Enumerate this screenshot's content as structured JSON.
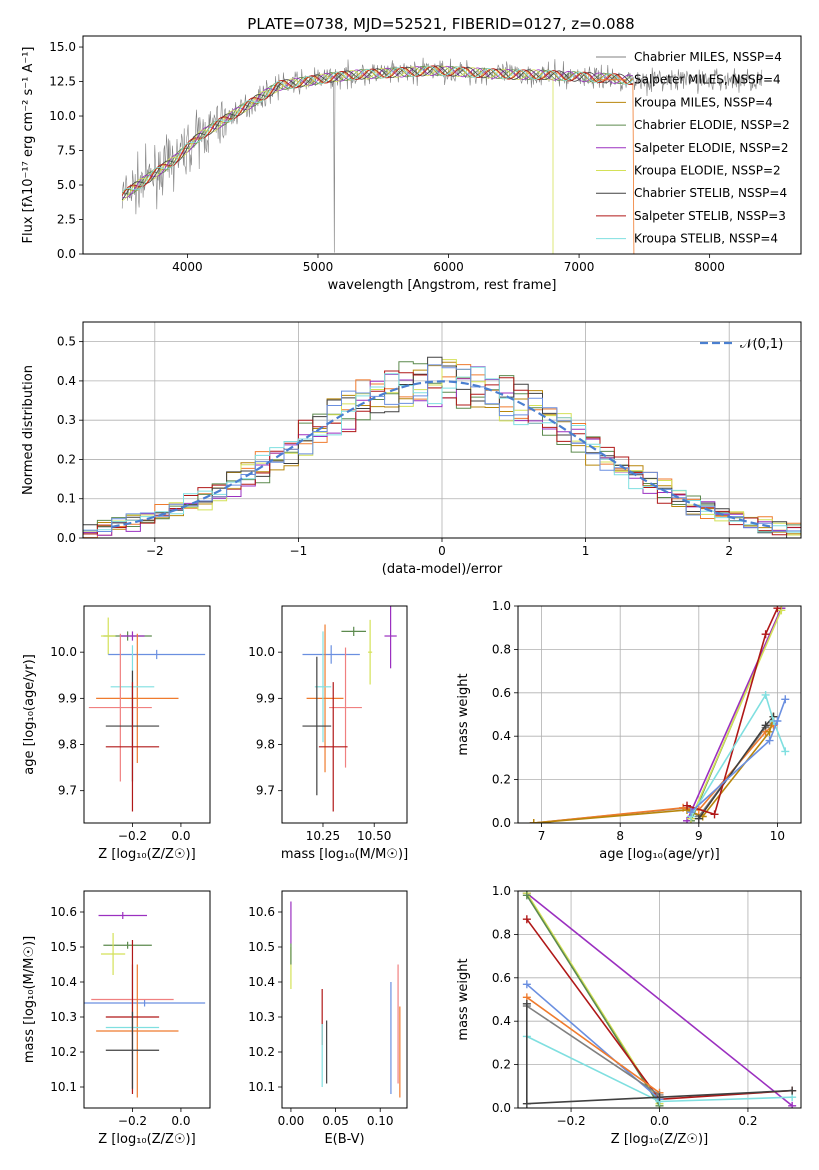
{
  "figure_title": "PLATE=0738, MJD=52521, FIBERID=0127, z=0.088",
  "series_colors": [
    "#808080",
    "#ef7b2e",
    "#b8860b",
    "#5c8a4e",
    "#9b30c0",
    "#d4e157",
    "#404040",
    "#b01818",
    "#7fdfe0"
  ],
  "chart_data": [
    {
      "type": "line",
      "panel": "spectrum",
      "title": "PLATE=0738, MJD=52521, FIBERID=0127, z=0.088",
      "xlabel": "wavelength [Angstrom, rest frame]",
      "ylabel": "Flux [fλ10⁻¹⁷ erg cm⁻² s⁻¹ A⁻¹]",
      "xlim": [
        3200,
        8700
      ],
      "ylim": [
        0,
        15.8
      ],
      "xticks": [
        4000,
        5000,
        6000,
        7000,
        8000
      ],
      "yticks": [
        0.0,
        2.5,
        5.0,
        7.5,
        10.0,
        12.5,
        15.0
      ],
      "legend_position": "upper-right",
      "series": [
        {
          "name": "Chabrier MILES, N_SSP=4",
          "color": "#808080"
        },
        {
          "name": "Salpeter MILES, N_SSP=4",
          "color": "#ef7b2e"
        },
        {
          "name": "Kroupa MILES, N_SSP=4",
          "color": "#b8860b"
        },
        {
          "name": "Chabrier ELODIE, N_SSP=2",
          "color": "#5c8a4e"
        },
        {
          "name": "Salpeter ELODIE, N_SSP=2",
          "color": "#9b30c0"
        },
        {
          "name": "Kroupa ELODIE, N_SSP=2",
          "color": "#d4e157"
        },
        {
          "name": "Chabrier STELIB, N_SSP=4",
          "color": "#404040"
        },
        {
          "name": "Salpeter STELIB, N_SSP=3",
          "color": "#b01818"
        },
        {
          "name": "Kroupa STELIB, N_SSP=4",
          "color": "#7fdfe0"
        }
      ],
      "continuum": {
        "x": [
          3500,
          3700,
          3900,
          4100,
          4300,
          4500,
          4700,
          4900,
          5100,
          5300,
          5500,
          5700,
          5900,
          6100,
          6300,
          6500,
          6700,
          6900,
          7100,
          7300,
          7420
        ],
        "y": [
          4.2,
          5.5,
          6.8,
          8.6,
          9.8,
          11.0,
          12.2,
          12.5,
          12.8,
          13.0,
          13.1,
          13.2,
          13.3,
          13.2,
          13.1,
          13.0,
          13.0,
          12.9,
          12.8,
          12.7,
          12.6
        ]
      },
      "data_extent": {
        "data_max": 8400,
        "model_max": 7420
      }
    },
    {
      "type": "line",
      "panel": "residuals",
      "xlabel": "(data-model)/error",
      "ylabel": "Normed distribution",
      "xlim": [
        -2.5,
        2.5
      ],
      "ylim": [
        0,
        0.55
      ],
      "xticks": [
        -2,
        -1,
        0,
        1,
        2
      ],
      "yticks": [
        0.0,
        0.1,
        0.2,
        0.3,
        0.4,
        0.5
      ],
      "grid": true,
      "legend_position": "upper-right",
      "reference": {
        "name": "𝒩(0,1)",
        "color": "#4a7fd0",
        "mean": 0,
        "sigma": 1
      }
    },
    {
      "type": "scatter",
      "panel": "age-vs-Z",
      "xlabel": "Z [log₁₀(Z/Z☉)]",
      "ylabel": "age  [log₁₀(age/yr)]",
      "xlim": [
        -0.4,
        0.12
      ],
      "ylim": [
        9.63,
        10.1
      ],
      "xticks": [
        -0.2,
        0.0
      ],
      "yticks": [
        9.7,
        9.8,
        9.9,
        10.0
      ],
      "points": [
        {
          "x": -0.22,
          "xerr": 0.1,
          "y": 10.035,
          "yerr": 0.01,
          "color": "#5c8a4e"
        },
        {
          "x": -0.2,
          "xerr": 0.05,
          "y": 10.035,
          "yerr": 0.01,
          "color": "#9b30c0"
        },
        {
          "x": -0.3,
          "xerr": 0.03,
          "y": 10.035,
          "yerr": 0.04,
          "color": "#d4e157"
        },
        {
          "x": -0.1,
          "xerr": 0.2,
          "y": 9.995,
          "yerr": 0.01,
          "color": "#6a8fe0"
        },
        {
          "x": -0.18,
          "xerr": 0.17,
          "y": 9.9,
          "yerr": 0.14,
          "color": "#ef7b2e"
        },
        {
          "x": -0.2,
          "xerr": 0.09,
          "y": 9.925,
          "yerr": 0.09,
          "color": "#7fdfe0"
        },
        {
          "x": -0.25,
          "xerr": 0.13,
          "y": 9.88,
          "yerr": 0.16,
          "color": "#f08080"
        },
        {
          "x": -0.2,
          "xerr": 0.11,
          "y": 9.84,
          "yerr": 0.12,
          "color": "#404040"
        },
        {
          "x": -0.2,
          "xerr": 0.11,
          "y": 9.795,
          "yerr": 0.14,
          "color": "#b01818"
        }
      ]
    },
    {
      "type": "scatter",
      "panel": "age-vs-mass",
      "xlabel": "mass [log₁₀(M/M☉)]",
      "ylabel": "",
      "xlim": [
        10.05,
        10.66
      ],
      "ylim": [
        9.63,
        10.1
      ],
      "xticks": [
        10.25,
        10.5
      ],
      "yticks": [
        9.7,
        9.8,
        9.9,
        10.0
      ],
      "points": [
        {
          "x": 10.4,
          "xerr": 0.06,
          "y": 10.045,
          "yerr": 0.01,
          "color": "#5c8a4e"
        },
        {
          "x": 10.58,
          "xerr": 0.03,
          "y": 10.035,
          "yerr": 0.07,
          "color": "#9b30c0"
        },
        {
          "x": 10.48,
          "xerr": 0.01,
          "y": 10.0,
          "yerr": 0.07,
          "color": "#d4e157"
        },
        {
          "x": 10.29,
          "xerr": 0.14,
          "y": 9.995,
          "yerr": 0.02,
          "color": "#6a8fe0"
        },
        {
          "x": 10.26,
          "xerr": 0.09,
          "y": 9.9,
          "yerr": 0.16,
          "color": "#ef7b2e"
        },
        {
          "x": 10.25,
          "xerr": 0.04,
          "y": 9.925,
          "yerr": 0.12,
          "color": "#7fdfe0"
        },
        {
          "x": 10.36,
          "xerr": 0.08,
          "y": 9.88,
          "yerr": 0.13,
          "color": "#f08080"
        },
        {
          "x": 10.22,
          "xerr": 0.07,
          "y": 9.84,
          "yerr": 0.15,
          "color": "#404040"
        },
        {
          "x": 10.3,
          "xerr": 0.07,
          "y": 9.795,
          "yerr": 0.14,
          "color": "#b01818"
        }
      ]
    },
    {
      "type": "line",
      "panel": "mass-weight-vs-age",
      "xlabel": "age  [log₁₀(age/yr)]",
      "ylabel": "mass weight",
      "xlim": [
        6.7,
        10.3
      ],
      "ylim": [
        0,
        1.0
      ],
      "xticks": [
        7,
        8,
        9,
        10
      ],
      "yticks": [
        0.0,
        0.2,
        0.4,
        0.6,
        0.8,
        1.0
      ],
      "grid": true,
      "series": [
        {
          "color": "#808080",
          "x": [
            6.9,
            8.85,
            9.0,
            9.85,
            9.95
          ],
          "y": [
            0.0,
            0.07,
            0.03,
            0.44,
            0.46
          ]
        },
        {
          "color": "#ef7b2e",
          "x": [
            6.9,
            8.8,
            9.0,
            9.85,
            9.95
          ],
          "y": [
            0.0,
            0.07,
            0.06,
            0.42,
            0.45
          ]
        },
        {
          "color": "#b8860b",
          "x": [
            6.9,
            8.85,
            9.05,
            9.9,
            9.95
          ],
          "y": [
            0.0,
            0.06,
            0.03,
            0.42,
            0.49
          ]
        },
        {
          "color": "#5c8a4e",
          "x": [
            8.9,
            10.05
          ],
          "y": [
            0.01,
            0.99
          ]
        },
        {
          "color": "#9b30c0",
          "x": [
            8.85,
            10.05
          ],
          "y": [
            0.01,
            0.99
          ]
        },
        {
          "color": "#d4e157",
          "x": [
            8.9,
            10.05
          ],
          "y": [
            0.02,
            0.98
          ]
        },
        {
          "color": "#404040",
          "x": [
            9.0,
            9.85,
            9.95
          ],
          "y": [
            0.02,
            0.45,
            0.49
          ]
        },
        {
          "color": "#b01818",
          "x": [
            8.85,
            9.2,
            9.85,
            10.0
          ],
          "y": [
            0.08,
            0.04,
            0.87,
            0.99
          ]
        },
        {
          "color": "#7fdfe0",
          "x": [
            8.9,
            9.85,
            9.95,
            10.1
          ],
          "y": [
            0.03,
            0.59,
            0.47,
            0.33
          ]
        },
        {
          "color": "#6a8fe0",
          "x": [
            8.9,
            9.9,
            10.0,
            10.1
          ],
          "y": [
            0.05,
            0.38,
            0.47,
            0.57
          ]
        }
      ]
    },
    {
      "type": "scatter",
      "panel": "mass-vs-Z",
      "xlabel": "Z [log₁₀(Z/Z☉)]",
      "ylabel": "mass [log₁₀(M/M☉)]",
      "xlim": [
        -0.4,
        0.12
      ],
      "ylim": [
        10.04,
        10.66
      ],
      "xticks": [
        -0.2,
        0.0
      ],
      "yticks": [
        10.1,
        10.2,
        10.3,
        10.4,
        10.5,
        10.6
      ],
      "points": [
        {
          "x": -0.24,
          "xerr": 0.1,
          "y": 10.59,
          "yerr": 0.01,
          "color": "#9b30c0"
        },
        {
          "x": -0.22,
          "xerr": 0.1,
          "y": 10.505,
          "yerr": 0.01,
          "color": "#5c8a4e"
        },
        {
          "x": -0.28,
          "xerr": 0.05,
          "y": 10.48,
          "yerr": 0.06,
          "color": "#d4e157"
        },
        {
          "x": -0.15,
          "xerr": 0.25,
          "y": 10.34,
          "yerr": 0.01,
          "color": "#6a8fe0"
        },
        {
          "x": -0.2,
          "xerr": 0.17,
          "y": 10.35,
          "yerr": 0.1,
          "color": "#f08080"
        },
        {
          "x": -0.18,
          "xerr": 0.17,
          "y": 10.26,
          "yerr": 0.19,
          "color": "#ef7b2e"
        },
        {
          "x": -0.2,
          "xerr": 0.11,
          "y": 10.27,
          "yerr": 0.18,
          "color": "#7fdfe0"
        },
        {
          "x": -0.2,
          "xerr": 0.11,
          "y": 10.3,
          "yerr": 0.22,
          "color": "#b01818"
        },
        {
          "x": -0.2,
          "xerr": 0.11,
          "y": 10.205,
          "yerr": 0.11,
          "color": "#404040"
        }
      ]
    },
    {
      "type": "scatter",
      "panel": "mass-vs-EBV",
      "xlabel": "E(B-V)",
      "ylabel": "",
      "xlim": [
        -0.01,
        0.13
      ],
      "ylim": [
        10.04,
        10.66
      ],
      "xticks": [
        0.0,
        0.05,
        0.1
      ],
      "yticks": [
        10.1,
        10.2,
        10.3,
        10.4,
        10.5,
        10.6
      ],
      "points": [
        {
          "x": 0.0,
          "y": 10.57,
          "yerr": 0.06,
          "color": "#9b30c0"
        },
        {
          "x": 0.0,
          "y": 10.44,
          "yerr": 0.06,
          "color": "#d4e157"
        },
        {
          "x": 0.0,
          "y": 10.48,
          "yerr": 0.03,
          "color": "#5c8a4e"
        },
        {
          "x": 0.035,
          "y": 10.3,
          "yerr": 0.08,
          "color": "#b01818"
        },
        {
          "x": 0.035,
          "y": 10.19,
          "yerr": 0.09,
          "color": "#7fdfe0"
        },
        {
          "x": 0.04,
          "y": 10.2,
          "yerr": 0.09,
          "color": "#404040"
        },
        {
          "x": 0.112,
          "y": 10.24,
          "yerr": 0.16,
          "color": "#6a8fe0"
        },
        {
          "x": 0.122,
          "y": 10.2,
          "yerr": 0.13,
          "color": "#ef7b2e"
        },
        {
          "x": 0.12,
          "y": 10.28,
          "yerr": 0.17,
          "color": "#f08080"
        }
      ]
    },
    {
      "type": "line",
      "panel": "mass-weight-vs-Z",
      "xlabel": "Z [log₁₀(Z/Z☉)]",
      "ylabel": "mass weight",
      "xlim": [
        -0.32,
        0.32
      ],
      "ylim": [
        0,
        1.0
      ],
      "xticks": [
        -0.2,
        0.0,
        0.2
      ],
      "yticks": [
        0.0,
        0.2,
        0.4,
        0.6,
        0.8,
        1.0
      ],
      "grid": true,
      "series": [
        {
          "color": "#9b30c0",
          "x": [
            -0.3,
            0.3
          ],
          "y": [
            0.99,
            0.01
          ]
        },
        {
          "color": "#d4e157",
          "x": [
            -0.3,
            0.0
          ],
          "y": [
            0.99,
            0.02
          ]
        },
        {
          "color": "#5c8a4e",
          "x": [
            -0.3,
            0.0
          ],
          "y": [
            0.98,
            0.01
          ]
        },
        {
          "color": "#b01818",
          "x": [
            -0.3,
            0.0,
            0.3
          ],
          "y": [
            0.87,
            0.04,
            0.08
          ]
        },
        {
          "color": "#6a8fe0",
          "x": [
            -0.3,
            0.0
          ],
          "y": [
            0.57,
            0.04
          ]
        },
        {
          "color": "#ef7b2e",
          "x": [
            -0.3,
            0.0
          ],
          "y": [
            0.51,
            0.07
          ]
        },
        {
          "color": "#808080",
          "x": [
            -0.3,
            0.0
          ],
          "y": [
            0.47,
            0.06
          ]
        },
        {
          "color": "#7fdfe0",
          "x": [
            -0.3,
            0.0,
            0.3
          ],
          "y": [
            0.33,
            0.03,
            0.05
          ]
        },
        {
          "color": "#404040",
          "x": [
            -0.3,
            -0.3,
            0.0,
            0.3
          ],
          "y": [
            0.48,
            0.02,
            0.05,
            0.08
          ]
        }
      ]
    }
  ]
}
